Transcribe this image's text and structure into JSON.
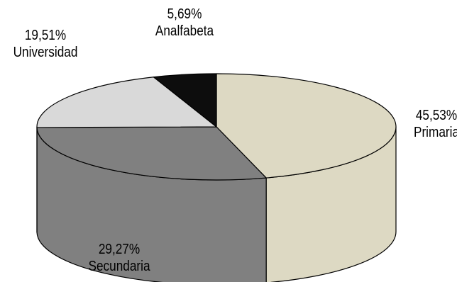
{
  "chart_data": {
    "type": "pie",
    "style": "3d",
    "title": "",
    "categories": [
      "Primaria",
      "Secundaria",
      "Universidad",
      "Analfabeta"
    ],
    "values": [
      45.53,
      29.27,
      19.51,
      5.69
    ],
    "value_labels": [
      "45,53%",
      "29,27%",
      "19,51%",
      "5,69%"
    ],
    "colors": [
      "#DDD9C3",
      "#808080",
      "#D9D9D9",
      "#0D0D0D"
    ],
    "legend": "none"
  }
}
